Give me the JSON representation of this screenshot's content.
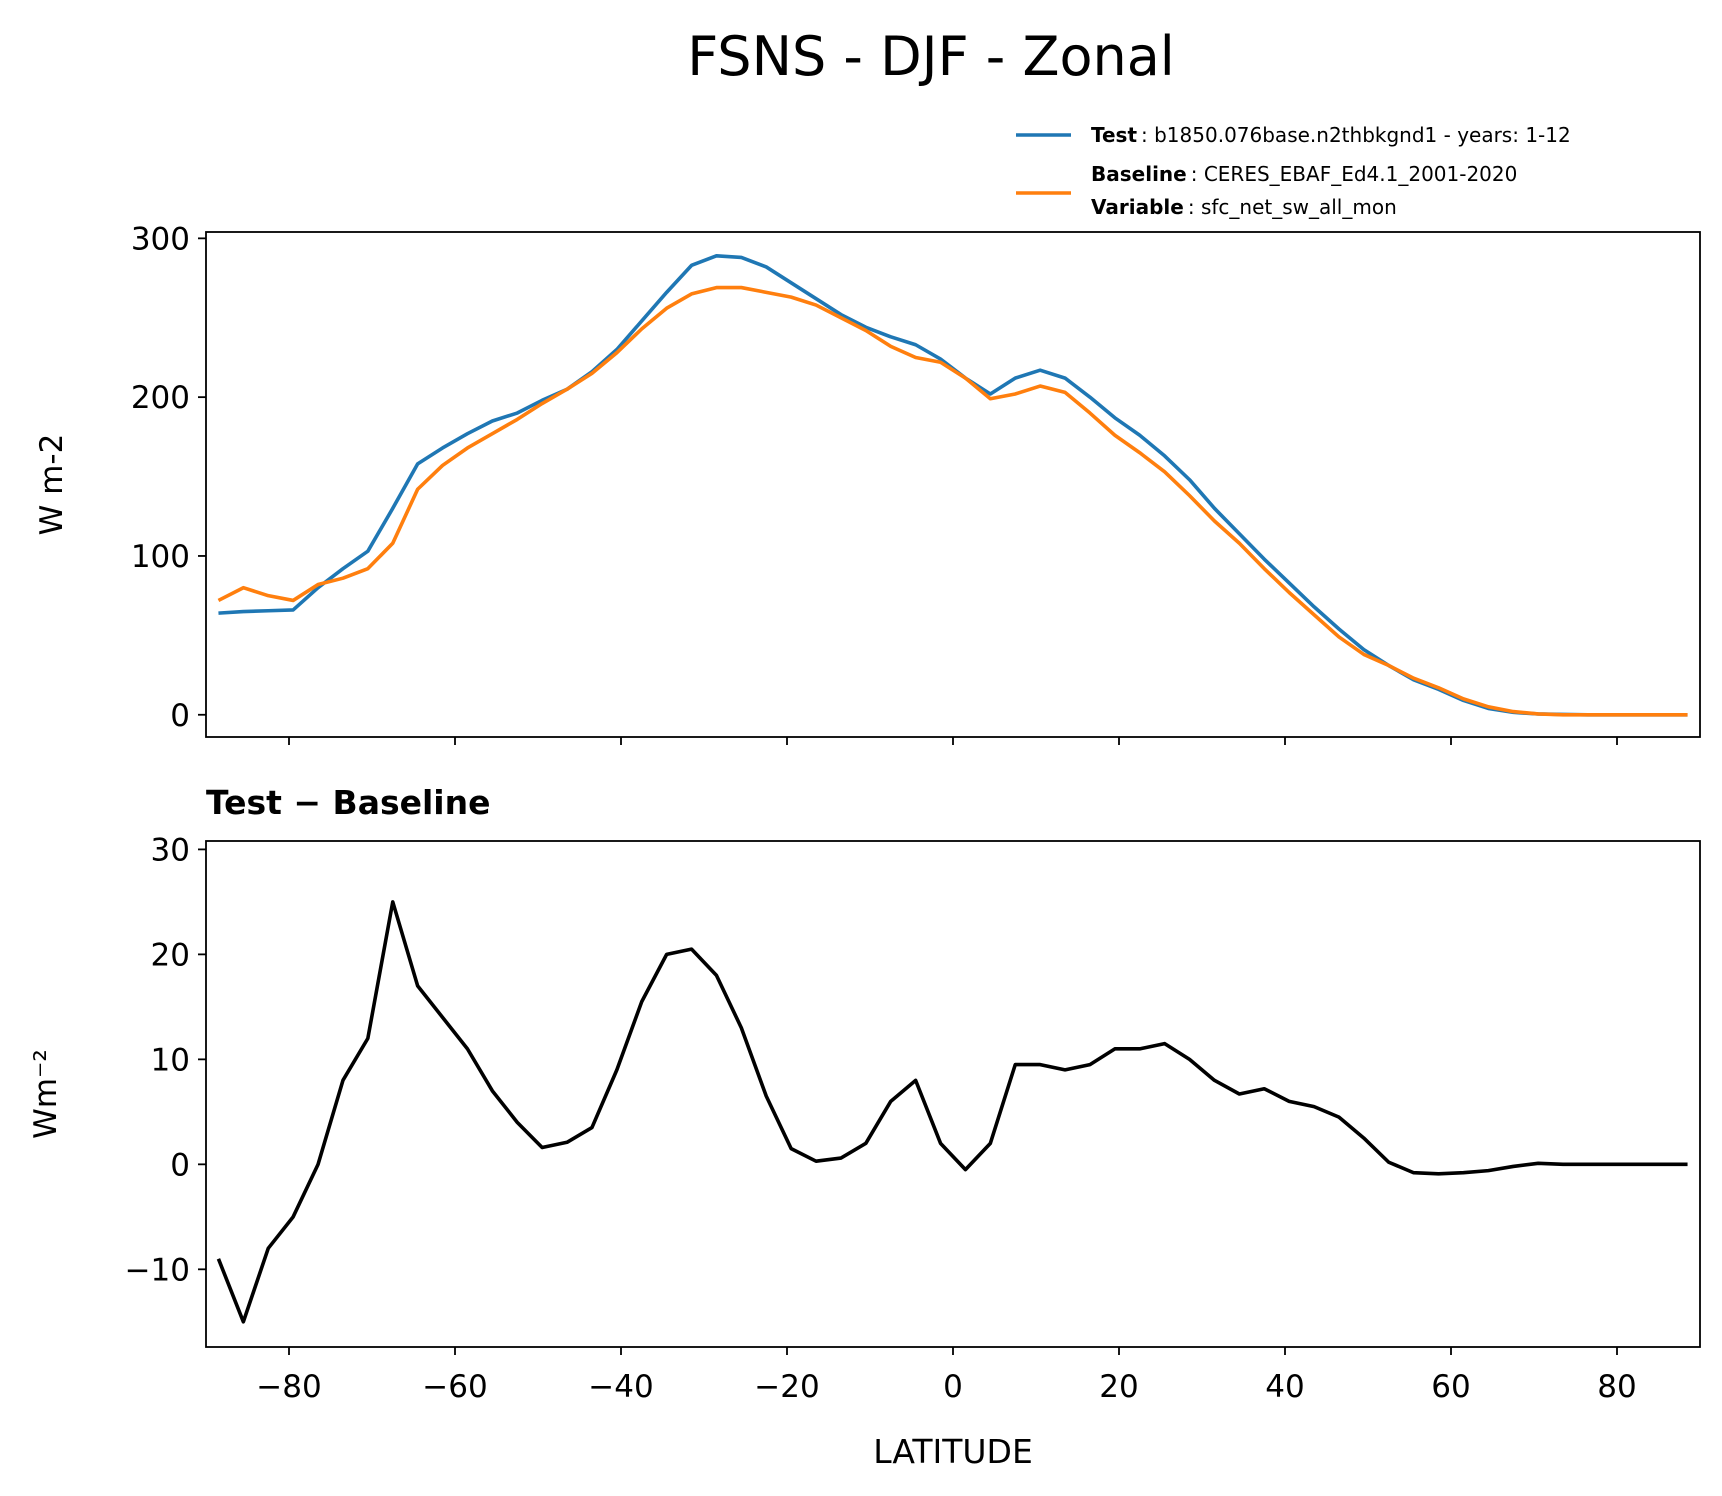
{
  "chart_data": [
    {
      "type": "line",
      "title": "FSNS - DJF - Zonal",
      "ylabel": "W m-2",
      "x": [
        -88.5,
        -85.5,
        -82.5,
        -79.5,
        -76.5,
        -73.5,
        -70.5,
        -67.5,
        -64.5,
        -61.5,
        -58.5,
        -55.5,
        -52.5,
        -49.5,
        -46.5,
        -43.5,
        -40.5,
        -37.5,
        -34.5,
        -31.5,
        -28.5,
        -25.5,
        -22.5,
        -19.5,
        -16.5,
        -13.5,
        -10.5,
        -7.5,
        -4.5,
        -1.5,
        1.5,
        4.5,
        7.5,
        10.5,
        13.5,
        16.5,
        19.5,
        22.5,
        25.5,
        28.5,
        31.5,
        34.5,
        37.5,
        40.5,
        43.5,
        46.5,
        49.5,
        52.5,
        55.5,
        58.5,
        61.5,
        64.5,
        67.5,
        70.5,
        73.5,
        76.5,
        79.5,
        82.5,
        85.5,
        88.5
      ],
      "series": [
        {
          "name": "Test",
          "detail": ": b1850.076base.n2thbkgnd1 - years: 1-12",
          "color": "#1f77b4",
          "values": [
            64,
            65,
            65.5,
            66,
            80,
            92,
            103,
            130,
            158,
            168,
            177,
            185,
            190,
            198,
            205,
            216,
            230,
            248,
            266,
            283,
            289,
            288,
            282,
            272,
            262,
            252,
            244,
            238,
            233,
            224,
            212,
            202,
            212,
            217,
            212,
            200,
            187,
            176,
            163,
            148,
            130,
            114,
            98,
            83,
            68,
            54,
            41,
            31,
            22,
            16,
            9,
            4,
            1.5,
            0.5,
            0.2,
            0,
            0,
            0,
            0,
            0
          ]
        },
        {
          "name": "Baseline",
          "detail": ": CERES_EBAF_Ed4.1_2001-2020",
          "extra_name": "Variable",
          "extra_detail": ": sfc_net_sw_all_mon",
          "color": "#ff7f0e",
          "values": [
            72,
            80,
            75,
            72,
            82,
            86,
            92,
            108,
            142,
            157,
            168,
            177,
            186,
            196,
            205,
            215,
            228,
            243,
            256,
            265,
            269,
            269,
            266,
            263,
            258,
            250,
            242,
            232,
            225,
            222,
            212,
            199,
            202,
            207,
            203,
            190,
            176,
            165,
            153,
            138,
            122,
            108,
            92,
            77,
            63,
            49,
            38,
            31,
            23,
            17,
            10,
            5,
            2,
            0.5,
            0,
            0,
            0,
            0,
            0,
            0
          ]
        }
      ],
      "xlim": [
        -90,
        90
      ],
      "xticks": [
        -80,
        -60,
        -40,
        -20,
        0,
        20,
        40,
        60,
        80
      ],
      "ylim": [
        -14,
        304
      ],
      "yticks": [
        0,
        100,
        200,
        300
      ]
    },
    {
      "type": "line",
      "title": "Test − Baseline",
      "xlabel": "LATITUDE",
      "ylabel": "Wm⁻²",
      "x": [
        -88.5,
        -85.5,
        -82.5,
        -79.5,
        -76.5,
        -73.5,
        -70.5,
        -67.5,
        -64.5,
        -61.5,
        -58.5,
        -55.5,
        -52.5,
        -49.5,
        -46.5,
        -43.5,
        -40.5,
        -37.5,
        -34.5,
        -31.5,
        -28.5,
        -25.5,
        -22.5,
        -19.5,
        -16.5,
        -13.5,
        -10.5,
        -7.5,
        -4.5,
        -1.5,
        1.5,
        4.5,
        7.5,
        10.5,
        13.5,
        16.5,
        19.5,
        22.5,
        25.5,
        28.5,
        31.5,
        34.5,
        37.5,
        40.5,
        43.5,
        46.5,
        49.5,
        52.5,
        55.5,
        58.5,
        61.5,
        64.5,
        67.5,
        70.5,
        73.5,
        76.5,
        79.5,
        82.5,
        85.5,
        88.5
      ],
      "series": [
        {
          "color": "#000000",
          "values": [
            -9,
            -15,
            -8,
            -5,
            0,
            8,
            12,
            25,
            17,
            14,
            11,
            7,
            4,
            1.6,
            2.1,
            3.5,
            9,
            15.5,
            20,
            20.5,
            18,
            13,
            6.5,
            1.5,
            0.3,
            0.6,
            2,
            6,
            8,
            2,
            -0.5,
            2,
            9.5,
            9.5,
            9,
            9.5,
            11,
            11,
            11.5,
            10,
            8,
            6.7,
            7.2,
            6,
            5.5,
            4.5,
            2.5,
            0.2,
            -0.8,
            -0.9,
            -0.8,
            -0.6,
            -0.2,
            0.1,
            0,
            0,
            0,
            0,
            0,
            0
          ]
        }
      ],
      "xlim": [
        -90,
        90
      ],
      "xticks": [
        {
          "value": -80,
          "label": "−80"
        },
        {
          "value": -60,
          "label": "−60"
        },
        {
          "value": -40,
          "label": "−40"
        },
        {
          "value": -20,
          "label": "−20"
        },
        0,
        20,
        40,
        60,
        80
      ],
      "ylim": [
        -17.4,
        30.8
      ],
      "yticks": [
        {
          "value": -10,
          "label": "−10"
        },
        0,
        10,
        20,
        30
      ]
    }
  ]
}
